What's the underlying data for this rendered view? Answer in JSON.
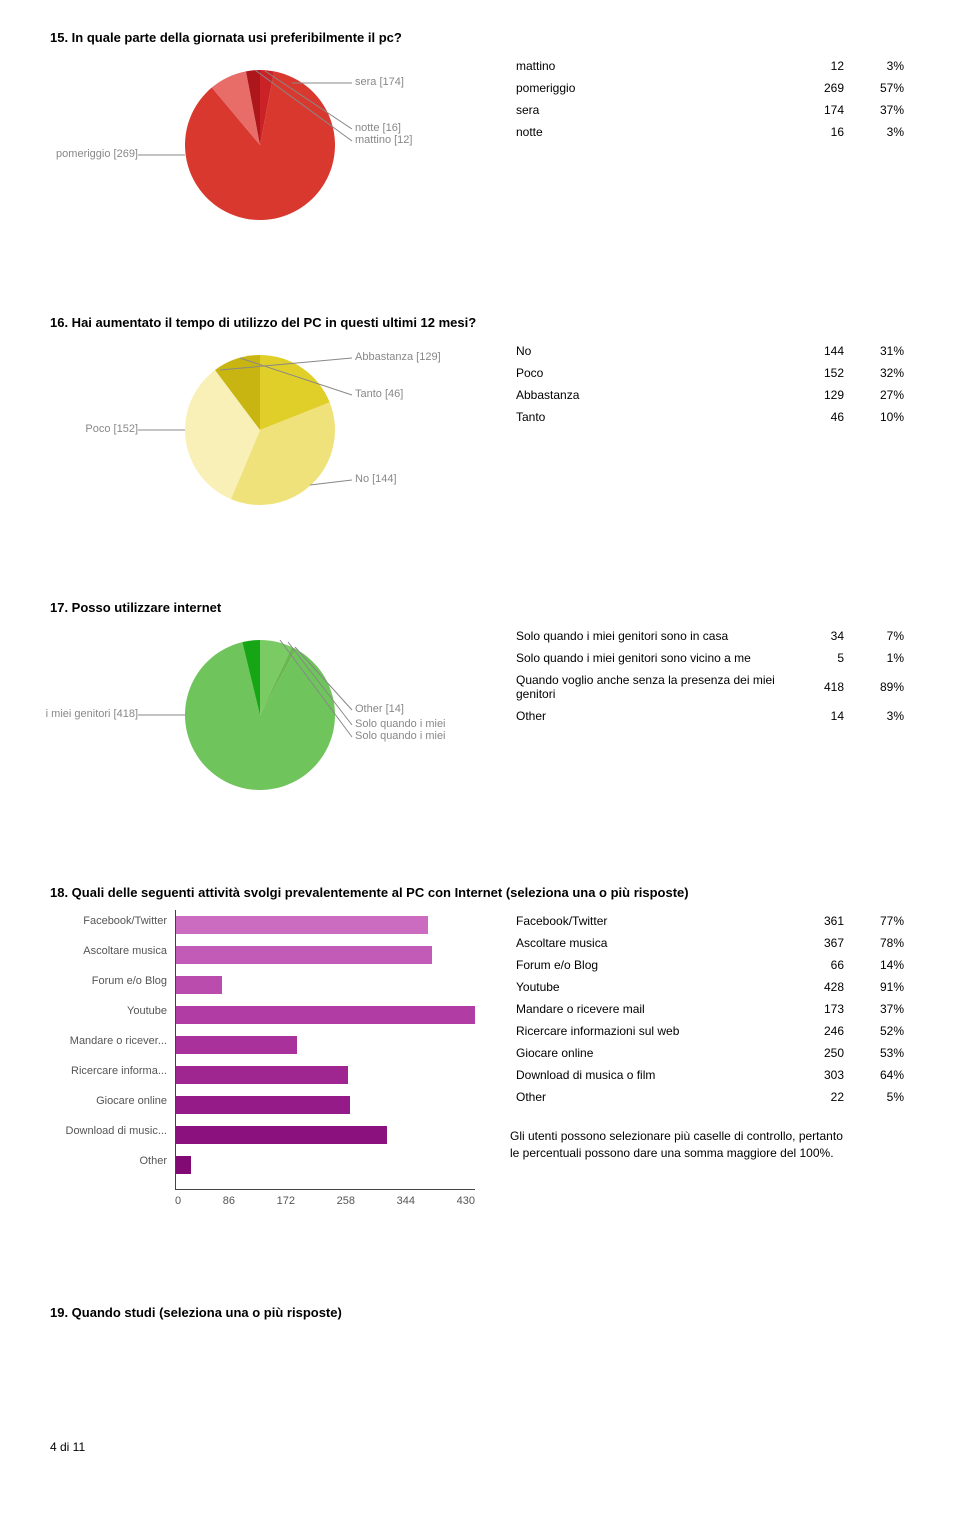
{
  "q15": {
    "title": "15. In quale parte della giornata usi preferibilmente il pc?",
    "rows": [
      {
        "label": "mattino",
        "count": 12,
        "pct": "3%"
      },
      {
        "label": "pomeriggio",
        "count": 269,
        "pct": "57%"
      },
      {
        "label": "sera",
        "count": 174,
        "pct": "37%"
      },
      {
        "label": "notte",
        "count": 16,
        "pct": "3%"
      }
    ],
    "pie_colors": [
      "#ca2226",
      "#d9382e",
      "#e86c68",
      "#ad171c"
    ],
    "pie_labels_left": {
      "text": "pomeriggio [269]"
    },
    "pie_labels_right": [
      {
        "text": "sera [174]"
      },
      {
        "text": "notte [16]"
      },
      {
        "text": "mattino [12]"
      }
    ]
  },
  "q16": {
    "title": "16. Hai aumentato il tempo di utilizzo del PC in questi ultimi 12 mesi?",
    "rows": [
      {
        "label": "No",
        "count": 144,
        "pct": "31%"
      },
      {
        "label": "Poco",
        "count": 152,
        "pct": "32%"
      },
      {
        "label": "Abbastanza",
        "count": 129,
        "pct": "27%"
      },
      {
        "label": "Tanto",
        "count": 46,
        "pct": "10%"
      }
    ],
    "pie_colors": [
      "#e1cf29",
      "#f0e27a",
      "#f8f0b7",
      "#c9b512"
    ],
    "pie_labels_left": {
      "text": "Poco [152]"
    },
    "pie_labels_right": [
      {
        "text": "Abbastanza [129]"
      },
      {
        "text": "Tanto [46]"
      },
      {
        "text": "No [144]"
      }
    ]
  },
  "q17": {
    "title": "17. Posso utilizzare internet",
    "rows": [
      {
        "label": "Solo quando i miei genitori sono in casa",
        "count": 34,
        "pct": "7%"
      },
      {
        "label": "Solo quando i miei genitori sono vicino a me",
        "count": 5,
        "pct": "1%"
      },
      {
        "label": "Quando voglio anche senza la presenza dei miei genitori",
        "count": 418,
        "pct": "89%"
      },
      {
        "label": "Other",
        "count": 14,
        "pct": "3%"
      }
    ],
    "pie_colors": [
      "#7acb63",
      "#68b84e",
      "#15a515",
      "#4aa52c"
    ],
    "pie_labels_left": {
      "text": "i miei genitori [418]"
    },
    "pie_labels_right": [
      {
        "text": "Other [14]"
      },
      {
        "text": "Solo quando i miei"
      },
      {
        "text": "Solo quando i miei"
      }
    ]
  },
  "q18": {
    "title": "18. Quali delle seguenti attività svolgi prevalentemente al PC con Internet (seleziona una o più risposte)",
    "rows": [
      {
        "label": "Facebook/Twitter",
        "count": 361,
        "pct": "77%",
        "short": "Facebook/Twitter"
      },
      {
        "label": "Ascoltare musica",
        "count": 367,
        "pct": "78%",
        "short": "Ascoltare musica"
      },
      {
        "label": "Forum e/o Blog",
        "count": 66,
        "pct": "14%",
        "short": "Forum e/o Blog"
      },
      {
        "label": "Youtube",
        "count": 428,
        "pct": "91%",
        "short": "Youtube"
      },
      {
        "label": "Mandare o ricevere mail",
        "count": 173,
        "pct": "37%",
        "short": "Mandare o ricever..."
      },
      {
        "label": "Ricercare informazioni sul web",
        "count": 246,
        "pct": "52%",
        "short": "Ricercare informa..."
      },
      {
        "label": "Giocare online",
        "count": 250,
        "pct": "53%",
        "short": "Giocare online"
      },
      {
        "label": "Download di musica o film",
        "count": 303,
        "pct": "64%",
        "short": "Download di music..."
      },
      {
        "label": "Other",
        "count": 22,
        "pct": "5%",
        "short": "Other"
      }
    ],
    "bar_colors": [
      "#cb6cc0",
      "#c25bb7",
      "#ba4cae",
      "#b13da4",
      "#a8319b",
      "#9f2591",
      "#951b88",
      "#8b127e",
      "#820a75"
    ],
    "x_ticks": [
      "0",
      "86",
      "172",
      "258",
      "344",
      "430"
    ],
    "x_max": 430,
    "note": "Gli utenti possono selezionare più caselle di controllo, pertanto le percentuali possono dare una somma maggiore del 100%."
  },
  "q19": {
    "title": "19. Quando studi (seleziona una o più risposte)"
  },
  "footer": "4 di 11"
}
